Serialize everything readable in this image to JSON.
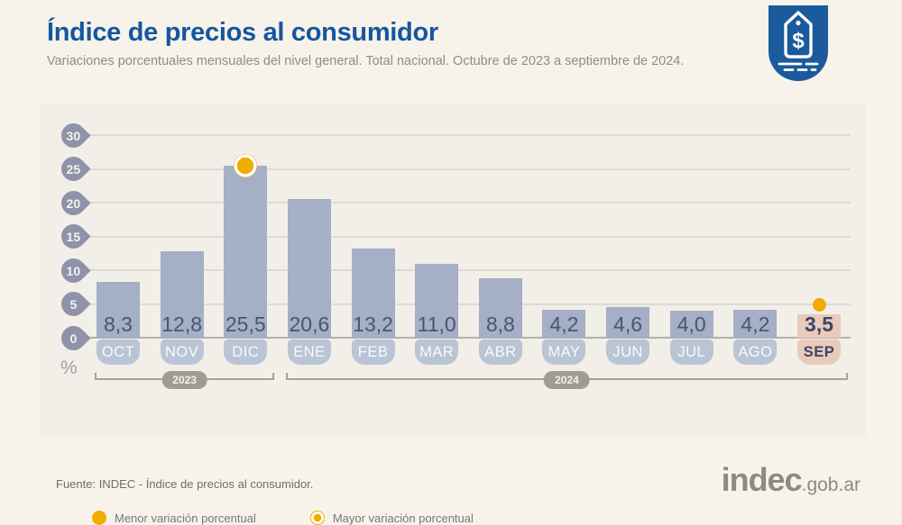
{
  "header": {
    "title": "Índice de precios al consumidor",
    "subtitle": "Variaciones porcentuales mensuales del nivel general. Total nacional. Octubre de 2023 a septiembre de 2024."
  },
  "axis": {
    "percent_label": "%"
  },
  "chart_data": {
    "type": "bar",
    "categories": [
      "OCT",
      "NOV",
      "DIC",
      "ENE",
      "FEB",
      "MAR",
      "ABR",
      "MAY",
      "JUN",
      "JUL",
      "AGO",
      "SEP"
    ],
    "values": [
      8.3,
      12.8,
      25.5,
      20.6,
      13.2,
      11.0,
      8.8,
      4.2,
      4.6,
      4.0,
      4.2,
      3.5
    ],
    "value_labels": [
      "8,3",
      "12,8",
      "25,5",
      "20,6",
      "13,2",
      "11,0",
      "8,8",
      "4,2",
      "4,6",
      "4,0",
      "4,2",
      "3,5"
    ],
    "y_ticks": [
      30,
      25,
      20,
      15,
      10,
      5,
      0
    ],
    "ylim": [
      0,
      30
    ],
    "ylabel": "%",
    "grid": true,
    "highlight_max_index": 2,
    "highlight_min_index": 11,
    "years": [
      {
        "label": "2023",
        "span": [
          0,
          2
        ]
      },
      {
        "label": "2024",
        "span": [
          3,
          11
        ]
      }
    ]
  },
  "legend": [
    {
      "marker": "solid-dot",
      "label": "Menor variación porcentual"
    },
    {
      "marker": "ring-dot",
      "label": "Mayor variación porcentual"
    }
  ],
  "footer": {
    "source": "Fuente: INDEC - Índice de precios al consumidor.",
    "logo_main": "indec",
    "logo_suffix": ".gob.ar"
  },
  "colors": {
    "title_blue": "#1457a0",
    "bar": "#a5afc5",
    "bar_highlight": "#eacaba",
    "month_tag": "#b9c4d6",
    "axis_badge": "#8f92aa",
    "marker_yellow": "#f2ac00",
    "year_pill": "#9d9d96",
    "page_background": "#f8f3ea",
    "panel_background": "#f1efe8",
    "icon_blue": "#1b5a9d"
  }
}
